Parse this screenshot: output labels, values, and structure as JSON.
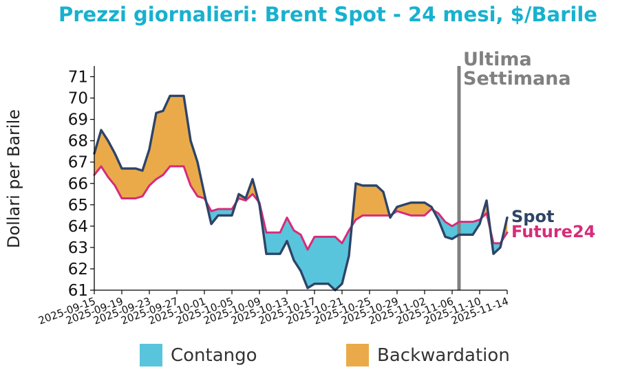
{
  "title": "Prezzi giornalieri: Brent Spot - 24 mesi, $/Barile",
  "chart_data": {
    "type": "line",
    "title": "Prezzi giornalieri: Brent Spot - 24 mesi, $/Barile",
    "ylabel": "Dollari per Barile",
    "xlabel": "",
    "ylim": [
      61,
      71.5
    ],
    "yticks": [
      61,
      62,
      63,
      64,
      65,
      66,
      67,
      68,
      69,
      70,
      71
    ],
    "xlim": [
      "2025-09-15",
      "2025-11-14"
    ],
    "xticks": [
      "2025-09-15",
      "2025-09-19",
      "2025-09-23",
      "2025-09-27",
      "2025-10-01",
      "2025-10-05",
      "2025-10-09",
      "2025-10-13",
      "2025-10-17",
      "2025-10-21",
      "2025-10-25",
      "2025-10-29",
      "2025-11-02",
      "2025-11-06",
      "2025-11-10",
      "2025-11-14"
    ],
    "grid": false,
    "vline": {
      "x": "2025-11-07",
      "label": "Ultima Settimana",
      "color": "#808080"
    },
    "fill_legend": [
      {
        "label": "Contango",
        "color": "#58c5dc"
      },
      {
        "label": "Backwardation",
        "color": "#eaaa4a"
      }
    ],
    "series": [
      {
        "name": "Spot",
        "color": "#2e4467",
        "points": [
          [
            "2025-09-15",
            67.4
          ],
          [
            "2025-09-16",
            68.5
          ],
          [
            "2025-09-17",
            68.0
          ],
          [
            "2025-09-18",
            67.4
          ],
          [
            "2025-09-19",
            66.7
          ],
          [
            "2025-09-20",
            66.7
          ],
          [
            "2025-09-21",
            66.7
          ],
          [
            "2025-09-22",
            66.6
          ],
          [
            "2025-09-23",
            67.6
          ],
          [
            "2025-09-24",
            69.3
          ],
          [
            "2025-09-25",
            69.4
          ],
          [
            "2025-09-26",
            70.1
          ],
          [
            "2025-09-27",
            70.1
          ],
          [
            "2025-09-28",
            70.1
          ],
          [
            "2025-09-29",
            68.0
          ],
          [
            "2025-09-30",
            67.0
          ],
          [
            "2025-10-01",
            65.5
          ],
          [
            "2025-10-02",
            64.1
          ],
          [
            "2025-10-03",
            64.5
          ],
          [
            "2025-10-04",
            64.5
          ],
          [
            "2025-10-05",
            64.5
          ],
          [
            "2025-10-06",
            65.5
          ],
          [
            "2025-10-07",
            65.3
          ],
          [
            "2025-10-08",
            66.2
          ],
          [
            "2025-10-09",
            65.0
          ],
          [
            "2025-10-10",
            62.7
          ],
          [
            "2025-10-11",
            62.7
          ],
          [
            "2025-10-12",
            62.7
          ],
          [
            "2025-10-13",
            63.3
          ],
          [
            "2025-10-14",
            62.4
          ],
          [
            "2025-10-15",
            61.9
          ],
          [
            "2025-10-16",
            61.1
          ],
          [
            "2025-10-17",
            61.3
          ],
          [
            "2025-10-18",
            61.3
          ],
          [
            "2025-10-19",
            61.3
          ],
          [
            "2025-10-20",
            61.0
          ],
          [
            "2025-10-21",
            61.3
          ],
          [
            "2025-10-22",
            62.6
          ],
          [
            "2025-10-23",
            66.0
          ],
          [
            "2025-10-24",
            65.9
          ],
          [
            "2025-10-25",
            65.9
          ],
          [
            "2025-10-26",
            65.9
          ],
          [
            "2025-10-27",
            65.6
          ],
          [
            "2025-10-28",
            64.4
          ],
          [
            "2025-10-29",
            64.9
          ],
          [
            "2025-10-30",
            65.0
          ],
          [
            "2025-10-31",
            65.1
          ],
          [
            "2025-11-01",
            65.1
          ],
          [
            "2025-11-02",
            65.1
          ],
          [
            "2025-11-03",
            64.9
          ],
          [
            "2025-11-04",
            64.3
          ],
          [
            "2025-11-05",
            63.5
          ],
          [
            "2025-11-06",
            63.4
          ],
          [
            "2025-11-07",
            63.6
          ],
          [
            "2025-11-08",
            63.6
          ],
          [
            "2025-11-09",
            63.6
          ],
          [
            "2025-11-10",
            64.1
          ],
          [
            "2025-11-11",
            65.2
          ],
          [
            "2025-11-12",
            62.7
          ],
          [
            "2025-11-13",
            63.0
          ],
          [
            "2025-11-14",
            64.4
          ]
        ]
      },
      {
        "name": "Future24",
        "color": "#d62c79",
        "points": [
          [
            "2025-09-15",
            66.4
          ],
          [
            "2025-09-16",
            66.8
          ],
          [
            "2025-09-17",
            66.3
          ],
          [
            "2025-09-18",
            65.9
          ],
          [
            "2025-09-19",
            65.3
          ],
          [
            "2025-09-20",
            65.3
          ],
          [
            "2025-09-21",
            65.3
          ],
          [
            "2025-09-22",
            65.4
          ],
          [
            "2025-09-23",
            65.9
          ],
          [
            "2025-09-24",
            66.2
          ],
          [
            "2025-09-25",
            66.4
          ],
          [
            "2025-09-26",
            66.8
          ],
          [
            "2025-09-27",
            66.8
          ],
          [
            "2025-09-28",
            66.8
          ],
          [
            "2025-09-29",
            65.9
          ],
          [
            "2025-09-30",
            65.4
          ],
          [
            "2025-10-01",
            65.3
          ],
          [
            "2025-10-02",
            64.7
          ],
          [
            "2025-10-03",
            64.8
          ],
          [
            "2025-10-04",
            64.8
          ],
          [
            "2025-10-05",
            64.8
          ],
          [
            "2025-10-06",
            65.3
          ],
          [
            "2025-10-07",
            65.2
          ],
          [
            "2025-10-08",
            65.5
          ],
          [
            "2025-10-09",
            65.1
          ],
          [
            "2025-10-10",
            63.7
          ],
          [
            "2025-10-11",
            63.7
          ],
          [
            "2025-10-12",
            63.7
          ],
          [
            "2025-10-13",
            64.4
          ],
          [
            "2025-10-14",
            63.8
          ],
          [
            "2025-10-15",
            63.6
          ],
          [
            "2025-10-16",
            62.9
          ],
          [
            "2025-10-17",
            63.5
          ],
          [
            "2025-10-18",
            63.5
          ],
          [
            "2025-10-19",
            63.5
          ],
          [
            "2025-10-20",
            63.5
          ],
          [
            "2025-10-21",
            63.2
          ],
          [
            "2025-10-22",
            63.8
          ],
          [
            "2025-10-23",
            64.3
          ],
          [
            "2025-10-24",
            64.5
          ],
          [
            "2025-10-25",
            64.5
          ],
          [
            "2025-10-26",
            64.5
          ],
          [
            "2025-10-27",
            64.5
          ],
          [
            "2025-10-28",
            64.5
          ],
          [
            "2025-10-29",
            64.7
          ],
          [
            "2025-10-30",
            64.6
          ],
          [
            "2025-10-31",
            64.5
          ],
          [
            "2025-11-01",
            64.5
          ],
          [
            "2025-11-02",
            64.5
          ],
          [
            "2025-11-03",
            64.8
          ],
          [
            "2025-11-04",
            64.6
          ],
          [
            "2025-11-05",
            64.2
          ],
          [
            "2025-11-06",
            64.0
          ],
          [
            "2025-11-07",
            64.2
          ],
          [
            "2025-11-08",
            64.2
          ],
          [
            "2025-11-09",
            64.2
          ],
          [
            "2025-11-10",
            64.3
          ],
          [
            "2025-11-11",
            64.6
          ],
          [
            "2025-11-12",
            63.2
          ],
          [
            "2025-11-13",
            63.2
          ],
          [
            "2025-11-14",
            63.7
          ]
        ]
      }
    ]
  }
}
